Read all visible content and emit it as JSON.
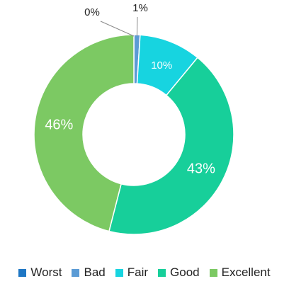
{
  "chart_data": {
    "type": "pie",
    "variant": "donut",
    "categories": [
      "Worst",
      "Bad",
      "Fair",
      "Good",
      "Excellent"
    ],
    "values": [
      0,
      1,
      10,
      43,
      46
    ],
    "data_labels": [
      "0%",
      "1%",
      "10%",
      "43%",
      "46%"
    ],
    "colors": [
      "#1f77c4",
      "#5b9bd5",
      "#17d4e0",
      "#17cf9a",
      "#7cc963"
    ],
    "legend_position": "bottom",
    "title": ""
  }
}
